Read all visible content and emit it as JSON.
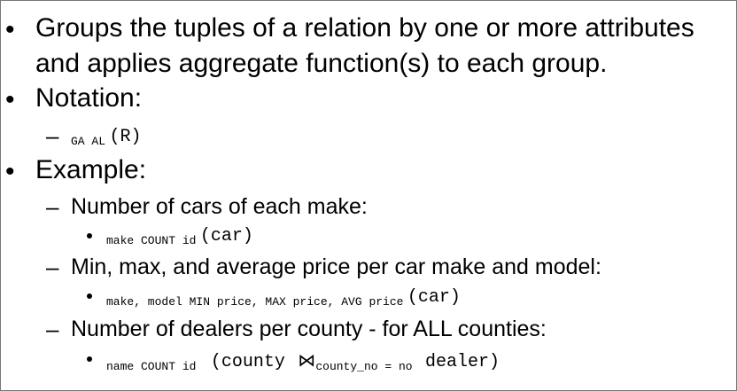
{
  "bullets": {
    "b1_line1": "Groups the tuples of a relation by one or more attributes",
    "b1_line2": "and applies aggregate function(s) to each group.",
    "b2": "Notation:",
    "b2_expr_sub": "GA AL",
    "b2_expr_arg": "(R)",
    "b3": "Example:"
  },
  "examples": [
    {
      "label": "Number of cars of each make:",
      "expr_sub": "make COUNT id",
      "expr_arg": "(car)"
    },
    {
      "label": "Min, max, and average price per car make and model:",
      "expr_sub": "make, model MIN price, MAX price, AVG price",
      "expr_arg": "(car)"
    },
    {
      "label": "Number of dealers per county - for ALL counties:",
      "expr_sub": "name COUNT id",
      "expr_arg_pre": "(county",
      "join_symbol": "⋈",
      "join_cond": "county_no = no",
      "expr_arg_post": "dealer)"
    }
  ],
  "symbols": {
    "bullet": "•",
    "dash": "–"
  }
}
